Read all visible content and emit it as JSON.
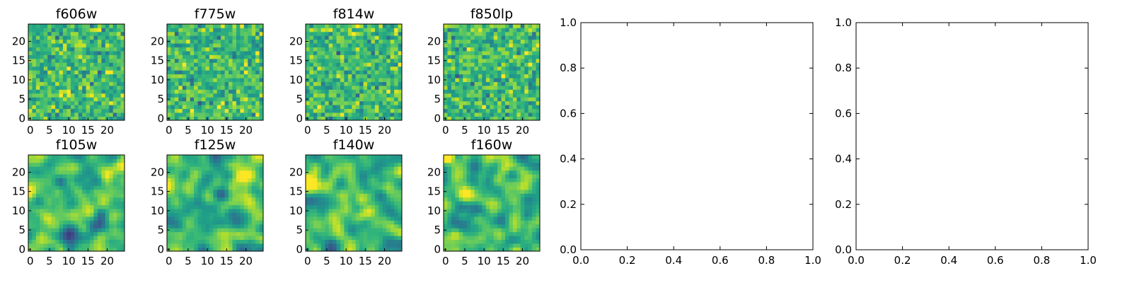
{
  "chart_data": {
    "type": "heatmap",
    "colormap": "viridis",
    "image_size": [
      25,
      25
    ],
    "pixel_values": "not legible; each panel shows an unlabeled 25x25 noise cutout",
    "image_panels": [
      {
        "title": "f606w",
        "xticks": [
          "0",
          "5",
          "10",
          "15",
          "20"
        ],
        "yticks": [
          "0",
          "5",
          "10",
          "15",
          "20"
        ],
        "xlim": [
          -0.5,
          24.5
        ],
        "ylim": [
          -0.5,
          24.5
        ],
        "texture": "fine"
      },
      {
        "title": "f775w",
        "xticks": [
          "0",
          "5",
          "10",
          "15",
          "20"
        ],
        "yticks": [
          "0",
          "5",
          "10",
          "15",
          "20"
        ],
        "xlim": [
          -0.5,
          24.5
        ],
        "ylim": [
          -0.5,
          24.5
        ],
        "texture": "fine"
      },
      {
        "title": "f814w",
        "xticks": [
          "0",
          "5",
          "10",
          "15",
          "20"
        ],
        "yticks": [
          "0",
          "5",
          "10",
          "15",
          "20"
        ],
        "xlim": [
          -0.5,
          24.5
        ],
        "ylim": [
          -0.5,
          24.5
        ],
        "texture": "fine"
      },
      {
        "title": "f850lp",
        "xticks": [
          "0",
          "5",
          "10",
          "15",
          "20"
        ],
        "yticks": [
          "0",
          "5",
          "10",
          "15",
          "20"
        ],
        "xlim": [
          -0.5,
          24.5
        ],
        "ylim": [
          -0.5,
          24.5
        ],
        "texture": "fine"
      },
      {
        "title": "f105w",
        "xticks": [
          "0",
          "5",
          "10",
          "15",
          "20"
        ],
        "yticks": [
          "0",
          "5",
          "10",
          "15",
          "20"
        ],
        "xlim": [
          -0.5,
          24.5
        ],
        "ylim": [
          -0.5,
          24.5
        ],
        "texture": "smooth"
      },
      {
        "title": "f125w",
        "xticks": [
          "0",
          "5",
          "10",
          "15",
          "20"
        ],
        "yticks": [
          "0",
          "5",
          "10",
          "15",
          "20"
        ],
        "xlim": [
          -0.5,
          24.5
        ],
        "ylim": [
          -0.5,
          24.5
        ],
        "texture": "smooth"
      },
      {
        "title": "f140w",
        "xticks": [
          "0",
          "5",
          "10",
          "15",
          "20"
        ],
        "yticks": [
          "0",
          "5",
          "10",
          "15",
          "20"
        ],
        "xlim": [
          -0.5,
          24.5
        ],
        "ylim": [
          -0.5,
          24.5
        ],
        "texture": "smooth"
      },
      {
        "title": "f160w",
        "xticks": [
          "0",
          "5",
          "10",
          "15",
          "20"
        ],
        "yticks": [
          "0",
          "5",
          "10",
          "15",
          "20"
        ],
        "xlim": [
          -0.5,
          24.5
        ],
        "ylim": [
          -0.5,
          24.5
        ],
        "texture": "smooth"
      }
    ],
    "empty_axes": [
      {
        "xlim": [
          0,
          1
        ],
        "ylim": [
          0,
          1
        ],
        "xticks": [
          "0.0",
          "0.2",
          "0.4",
          "0.6",
          "0.8",
          "1.0"
        ],
        "yticks": [
          "0.0",
          "0.2",
          "0.4",
          "0.6",
          "0.8",
          "1.0"
        ],
        "series": []
      },
      {
        "xlim": [
          0,
          1
        ],
        "ylim": [
          0,
          1
        ],
        "xticks": [
          "0.0",
          "0.2",
          "0.4",
          "0.6",
          "0.8",
          "1.0"
        ],
        "yticks": [
          "0.0",
          "0.2",
          "0.4",
          "0.6",
          "0.8",
          "1.0"
        ],
        "series": []
      }
    ],
    "grid": false,
    "legend": "none"
  }
}
